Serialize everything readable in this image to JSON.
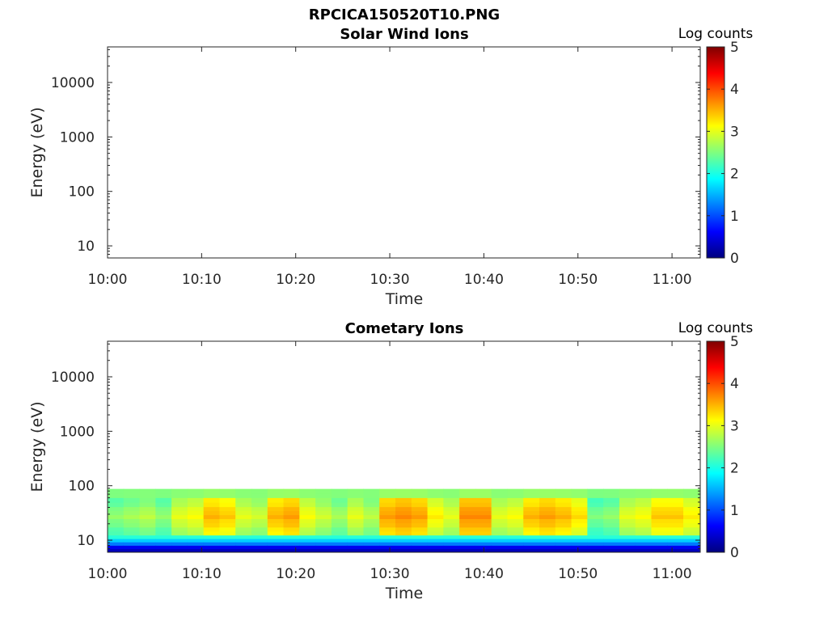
{
  "figure_title": "RPCICA150520T10.PNG",
  "colormap": [
    "#00007f",
    "#0000ff",
    "#007fff",
    "#00ffff",
    "#7fff7f",
    "#ffff00",
    "#ff7f00",
    "#ff0000",
    "#7f0000"
  ],
  "chart_data": [
    {
      "type": "heatmap",
      "title": "Solar Wind Ions",
      "xlabel": "Time",
      "ylabel": "Energy (eV)",
      "x_ticks": [
        "10:00",
        "10:10",
        "10:20",
        "10:30",
        "10:40",
        "10:50",
        "11:00"
      ],
      "y_ticks": [
        "10",
        "100",
        "1000",
        "10000"
      ],
      "y_scale": "log",
      "xlim_minutes_after_10h": [
        0,
        63
      ],
      "ylim": [
        6,
        45000
      ],
      "colorbar": {
        "label": "Log counts",
        "ticks": [
          "0",
          "1",
          "2",
          "3",
          "4",
          "5"
        ],
        "range": [
          0,
          5
        ]
      },
      "energy_bins": [],
      "time_bins": [],
      "log_counts": []
    },
    {
      "type": "heatmap",
      "title": "Cometary Ions",
      "xlabel": "Time",
      "ylabel": "Energy (eV)",
      "x_ticks": [
        "10:00",
        "10:10",
        "10:20",
        "10:30",
        "10:40",
        "10:50",
        "11:00"
      ],
      "y_ticks": [
        "10",
        "100",
        "1000",
        "10000"
      ],
      "y_scale": "log",
      "xlim_minutes_after_10h": [
        0,
        63
      ],
      "ylim": [
        6,
        45000
      ],
      "colorbar": {
        "label": "Log counts",
        "ticks": [
          "0",
          "1",
          "2",
          "3",
          "4",
          "5"
        ],
        "range": [
          0,
          5
        ]
      },
      "energy_bins": [
        6.5,
        7.5,
        8.7,
        10,
        11.5,
        13.5,
        16,
        19,
        23,
        27,
        32,
        38,
        45,
        55,
        67,
        80
      ],
      "time_minutes": [
        0,
        1.7,
        3.4,
        5.1,
        6.8,
        8.5,
        10.2,
        11.9,
        13.6,
        15.3,
        17,
        18.7,
        20.4,
        22.1,
        23.8,
        25.5,
        27.2,
        28.9,
        30.6,
        32.3,
        34,
        35.7,
        37.4,
        39.1,
        40.8,
        42.5,
        44.2,
        45.9,
        47.6,
        49.3,
        51,
        52.7,
        54.4,
        56.1,
        57.8,
        59.5,
        61.2
      ],
      "time_end_minutes": 62.9,
      "peak_log_counts": [
        2.6,
        2.7,
        2.8,
        2.6,
        3.0,
        3.1,
        3.5,
        3.4,
        3.0,
        2.9,
        3.5,
        3.6,
        3.1,
        2.9,
        2.7,
        3.0,
        2.8,
        3.6,
        3.7,
        3.6,
        3.2,
        3.0,
        3.7,
        3.7,
        3.0,
        3.1,
        3.5,
        3.6,
        3.5,
        3.3,
        2.5,
        2.6,
        3.0,
        3.1,
        3.4,
        3.4,
        3.2
      ]
    }
  ]
}
